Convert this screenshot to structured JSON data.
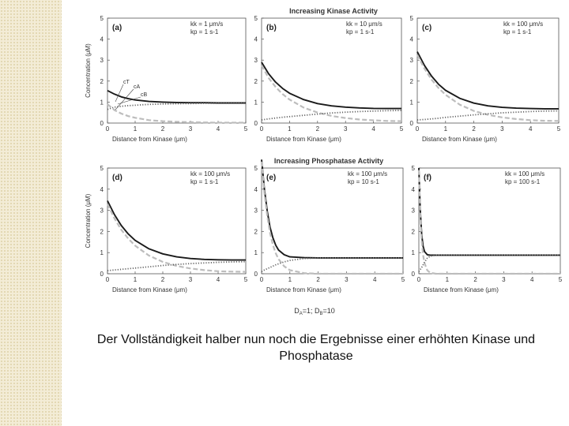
{
  "figure": {
    "row_titles": [
      "Increasing Kinase Activity",
      "Increasing Phosphatase Activity"
    ],
    "footnote": {
      "a_label": "D",
      "a_sub": "A",
      "a_val": "=1; ",
      "b_label": "D",
      "b_sub": "B",
      "b_val": "=10"
    },
    "colors": {
      "total": "#1a1a1a",
      "a_species": "#bdbdbd",
      "b_species": "#666666"
    }
  },
  "caption": "Der Vollständigkeit halber nun noch die Ergebnisse einer erhöhten Kinase und Phosphatase",
  "chart_data": [
    {
      "type": "line",
      "panel": "(a)",
      "kk": "kk = 1 μm/s",
      "kp": "kp = 1 s-1",
      "xlabel": "Distance from Kinase (μm)",
      "ylabel": "Concentration (μM)",
      "xlim": [
        0,
        5
      ],
      "ylim": [
        0,
        5
      ],
      "xticks": [
        0,
        1,
        2,
        3,
        4,
        5
      ],
      "yticks": [
        0,
        1,
        2,
        3,
        4,
        5
      ],
      "annotations": [
        "cT",
        "cA",
        "cB"
      ],
      "x": [
        0,
        0.25,
        0.5,
        0.75,
        1,
        1.5,
        2,
        2.5,
        3,
        3.5,
        4,
        4.5,
        5
      ],
      "series": [
        {
          "name": "cT",
          "style": "solid",
          "values": [
            1.55,
            1.38,
            1.25,
            1.16,
            1.1,
            1.03,
            1.0,
            0.98,
            0.97,
            0.97,
            0.96,
            0.96,
            0.96
          ]
        },
        {
          "name": "cA",
          "style": "dashed",
          "values": [
            0.9,
            0.62,
            0.45,
            0.33,
            0.25,
            0.14,
            0.09,
            0.06,
            0.04,
            0.03,
            0.02,
            0.02,
            0.02
          ]
        },
        {
          "name": "cB",
          "style": "dotted",
          "values": [
            0.65,
            0.76,
            0.8,
            0.83,
            0.85,
            0.89,
            0.91,
            0.92,
            0.93,
            0.94,
            0.94,
            0.94,
            0.94
          ]
        }
      ]
    },
    {
      "type": "line",
      "panel": "(b)",
      "kk": "kk = 10 μm/s",
      "kp": "kp = 1 s-1",
      "xlabel": "Distance from Kinase (μm)",
      "ylabel": "",
      "xlim": [
        0,
        5
      ],
      "ylim": [
        0,
        5
      ],
      "xticks": [
        0,
        1,
        2,
        3,
        4,
        5
      ],
      "yticks": [
        0,
        1,
        2,
        3,
        4,
        5
      ],
      "x": [
        0,
        0.25,
        0.5,
        0.75,
        1,
        1.5,
        2,
        2.5,
        3,
        3.5,
        4,
        4.5,
        5
      ],
      "series": [
        {
          "name": "cT",
          "style": "solid",
          "values": [
            2.9,
            2.35,
            1.95,
            1.65,
            1.42,
            1.12,
            0.93,
            0.82,
            0.76,
            0.72,
            0.7,
            0.69,
            0.69
          ]
        },
        {
          "name": "cA",
          "style": "dashed",
          "values": [
            2.75,
            2.15,
            1.72,
            1.38,
            1.12,
            0.74,
            0.5,
            0.34,
            0.24,
            0.17,
            0.13,
            0.1,
            0.09
          ]
        },
        {
          "name": "cB",
          "style": "dotted",
          "values": [
            0.15,
            0.2,
            0.24,
            0.28,
            0.31,
            0.37,
            0.43,
            0.48,
            0.52,
            0.55,
            0.57,
            0.59,
            0.6
          ]
        }
      ]
    },
    {
      "type": "line",
      "panel": "(c)",
      "kk": "kk = 100 μm/s",
      "kp": "kp = 1 s-1",
      "xlabel": "Distance from Kinase (μm)",
      "ylabel": "",
      "xlim": [
        0,
        5
      ],
      "ylim": [
        0,
        5
      ],
      "xticks": [
        0,
        1,
        2,
        3,
        4,
        5
      ],
      "yticks": [
        0,
        1,
        2,
        3,
        4,
        5
      ],
      "x": [
        0,
        0.25,
        0.5,
        0.75,
        1,
        1.5,
        2,
        2.5,
        3,
        3.5,
        4,
        4.5,
        5
      ],
      "series": [
        {
          "name": "cT",
          "style": "solid",
          "values": [
            3.4,
            2.75,
            2.25,
            1.85,
            1.56,
            1.18,
            0.95,
            0.82,
            0.75,
            0.71,
            0.69,
            0.68,
            0.68
          ]
        },
        {
          "name": "cA",
          "style": "dashed",
          "values": [
            3.25,
            2.6,
            2.08,
            1.67,
            1.35,
            0.88,
            0.58,
            0.39,
            0.27,
            0.19,
            0.14,
            0.11,
            0.1
          ]
        },
        {
          "name": "cB",
          "style": "dotted",
          "values": [
            0.15,
            0.17,
            0.2,
            0.23,
            0.27,
            0.33,
            0.39,
            0.44,
            0.49,
            0.52,
            0.55,
            0.57,
            0.58
          ]
        }
      ]
    },
    {
      "type": "line",
      "panel": "(d)",
      "kk": "kk = 100 μm/s",
      "kp": "kp = 1 s-1",
      "xlabel": "Distance from Kinase (μm)",
      "ylabel": "Concentration (μM)",
      "xlim": [
        0,
        5
      ],
      "ylim": [
        0,
        5
      ],
      "xticks": [
        0,
        1,
        2,
        3,
        4,
        5
      ],
      "yticks": [
        0,
        1,
        2,
        3,
        4,
        5
      ],
      "x": [
        0,
        0.25,
        0.5,
        0.75,
        1,
        1.5,
        2,
        2.5,
        3,
        3.5,
        4,
        4.5,
        5
      ],
      "series": [
        {
          "name": "cT",
          "style": "solid",
          "values": [
            3.45,
            2.8,
            2.28,
            1.88,
            1.58,
            1.18,
            0.94,
            0.8,
            0.72,
            0.68,
            0.66,
            0.65,
            0.65
          ]
        },
        {
          "name": "cA",
          "style": "dashed",
          "values": [
            3.3,
            2.62,
            2.08,
            1.66,
            1.33,
            0.86,
            0.56,
            0.37,
            0.25,
            0.17,
            0.12,
            0.1,
            0.09
          ]
        },
        {
          "name": "cB",
          "style": "dotted",
          "values": [
            0.15,
            0.18,
            0.21,
            0.24,
            0.27,
            0.33,
            0.39,
            0.44,
            0.48,
            0.51,
            0.54,
            0.56,
            0.57
          ]
        }
      ]
    },
    {
      "type": "line",
      "panel": "(e)",
      "kk": "kk = 100 μm/s",
      "kp": "kp = 10 s-1",
      "xlabel": "Distance from Kinase (μm)",
      "ylabel": "",
      "xlim": [
        0,
        5
      ],
      "ylim": [
        0,
        5
      ],
      "xticks": [
        0,
        1,
        2,
        3,
        4,
        5
      ],
      "yticks": [
        0,
        1,
        2,
        3,
        4,
        5
      ],
      "x": [
        0,
        0.1,
        0.2,
        0.3,
        0.4,
        0.5,
        0.6,
        0.8,
        1,
        1.5,
        2,
        3,
        4,
        5
      ],
      "series": [
        {
          "name": "cT",
          "style": "solid",
          "values": [
            5.4,
            4.0,
            2.95,
            2.2,
            1.7,
            1.35,
            1.12,
            0.9,
            0.8,
            0.76,
            0.75,
            0.75,
            0.75,
            0.75
          ]
        },
        {
          "name": "cA",
          "style": "dashed",
          "values": [
            5.3,
            3.82,
            2.72,
            1.93,
            1.37,
            0.97,
            0.69,
            0.35,
            0.17,
            0.03,
            0.0,
            0.0,
            0.0,
            0.0
          ]
        },
        {
          "name": "cB",
          "style": "dotted",
          "values": [
            0.1,
            0.18,
            0.24,
            0.3,
            0.36,
            0.42,
            0.47,
            0.56,
            0.63,
            0.72,
            0.75,
            0.75,
            0.75,
            0.75
          ]
        }
      ]
    },
    {
      "type": "line",
      "panel": "(f)",
      "kk": "kk = 100 μm/s",
      "kp": "kp = 100 s-1",
      "xlabel": "Distance from Kinase (μm)",
      "ylabel": "",
      "xlim": [
        0,
        5
      ],
      "ylim": [
        0,
        5
      ],
      "xticks": [
        0,
        1,
        2,
        3,
        4,
        5
      ],
      "yticks": [
        0,
        1,
        2,
        3,
        4,
        5
      ],
      "x": [
        0,
        0.05,
        0.1,
        0.15,
        0.2,
        0.3,
        0.4,
        0.6,
        1,
        2,
        3,
        4,
        5
      ],
      "series": [
        {
          "name": "cT",
          "style": "solid",
          "values": [
            5.0,
            3.0,
            1.85,
            1.3,
            1.05,
            0.9,
            0.88,
            0.88,
            0.88,
            0.88,
            0.88,
            0.88,
            0.88
          ]
        },
        {
          "name": "cA",
          "style": "dashed",
          "values": [
            4.9,
            2.8,
            1.55,
            0.88,
            0.5,
            0.16,
            0.05,
            0.0,
            0.0,
            0.0,
            0.0,
            0.0,
            0.0
          ]
        },
        {
          "name": "cB",
          "style": "dotted",
          "values": [
            0.1,
            0.2,
            0.3,
            0.42,
            0.55,
            0.74,
            0.83,
            0.88,
            0.88,
            0.88,
            0.88,
            0.88,
            0.88
          ]
        }
      ]
    }
  ]
}
